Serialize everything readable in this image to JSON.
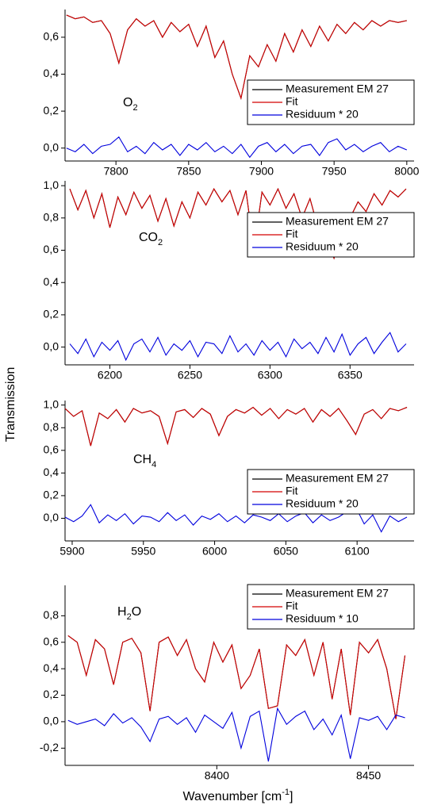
{
  "y_label": "Transmission",
  "x_label": [
    {
      "text": "Wavenumber [cm"
    },
    {
      "text": "-1",
      "sup": true
    },
    {
      "text": "]"
    }
  ],
  "chart_data": [
    {
      "type": "line",
      "label": [
        {
          "text": "O"
        },
        {
          "text": "2",
          "sub": true
        }
      ],
      "xlim": [
        7765,
        8005
      ],
      "xticks": [
        7800,
        7850,
        7900,
        7950,
        8000
      ],
      "ylim": [
        -0.07,
        0.75
      ],
      "yticks": [
        {
          "value": 0,
          "label": "0,0"
        },
        {
          "value": 0.2,
          "label": "0,2"
        },
        {
          "value": 0.4,
          "label": "0,4"
        },
        {
          "value": 0.6,
          "label": "0,6"
        }
      ],
      "x": [
        7766,
        7772,
        7778,
        7784,
        7790,
        7796,
        7802,
        7808,
        7814,
        7820,
        7826,
        7832,
        7838,
        7844,
        7850,
        7856,
        7862,
        7868,
        7874,
        7880,
        7886,
        7892,
        7898,
        7904,
        7910,
        7916,
        7922,
        7928,
        7934,
        7940,
        7946,
        7952,
        7958,
        7964,
        7970,
        7976,
        7982,
        7988,
        7994,
        8000
      ],
      "series": [
        {
          "name": "Measurement EM 27",
          "color": "#000000",
          "values": [
            0.72,
            0.7,
            0.71,
            0.68,
            0.69,
            0.62,
            0.46,
            0.64,
            0.7,
            0.66,
            0.69,
            0.6,
            0.68,
            0.63,
            0.67,
            0.55,
            0.66,
            0.49,
            0.58,
            0.4,
            0.27,
            0.5,
            0.44,
            0.56,
            0.47,
            0.62,
            0.52,
            0.64,
            0.55,
            0.66,
            0.58,
            0.67,
            0.62,
            0.68,
            0.64,
            0.69,
            0.66,
            0.69,
            0.68,
            0.69
          ]
        },
        {
          "name": "Fit",
          "color": "#d40000",
          "values": [
            0.72,
            0.7,
            0.71,
            0.68,
            0.69,
            0.62,
            0.46,
            0.64,
            0.7,
            0.66,
            0.69,
            0.6,
            0.68,
            0.63,
            0.67,
            0.55,
            0.66,
            0.49,
            0.58,
            0.4,
            0.27,
            0.5,
            0.44,
            0.56,
            0.47,
            0.62,
            0.52,
            0.64,
            0.55,
            0.66,
            0.58,
            0.67,
            0.62,
            0.68,
            0.64,
            0.69,
            0.66,
            0.69,
            0.68,
            0.69
          ]
        },
        {
          "name": "Residuum * 20",
          "color": "#0000dd",
          "values": [
            0.0,
            -0.02,
            0.02,
            -0.03,
            0.01,
            0.02,
            0.06,
            -0.02,
            0.01,
            -0.03,
            0.03,
            -0.01,
            0.02,
            -0.04,
            0.02,
            -0.01,
            0.03,
            -0.02,
            0.01,
            -0.03,
            0.02,
            -0.05,
            0.01,
            0.03,
            -0.02,
            0.02,
            -0.03,
            0.01,
            0.02,
            -0.04,
            0.03,
            0.05,
            -0.01,
            0.02,
            -0.02,
            0.01,
            0.03,
            -0.02,
            0.01,
            -0.01
          ]
        }
      ]
    },
    {
      "type": "line",
      "label": [
        {
          "text": "CO"
        },
        {
          "text": "2",
          "sub": true
        }
      ],
      "xlim": [
        6172,
        6390
      ],
      "xticks": [
        6200,
        6250,
        6300,
        6350
      ],
      "ylim": [
        -0.11,
        1.03
      ],
      "yticks": [
        {
          "value": 0,
          "label": "0,0"
        },
        {
          "value": 0.2,
          "label": "0,2"
        },
        {
          "value": 0.4,
          "label": "0,4"
        },
        {
          "value": 0.6,
          "label": "0,6"
        },
        {
          "value": 0.8,
          "label": "0,8"
        },
        {
          "value": 1,
          "label": "1,0"
        }
      ],
      "x": [
        6175,
        6180,
        6185,
        6190,
        6195,
        6200,
        6205,
        6210,
        6215,
        6220,
        6225,
        6230,
        6235,
        6240,
        6245,
        6250,
        6255,
        6260,
        6265,
        6270,
        6275,
        6280,
        6285,
        6290,
        6295,
        6300,
        6305,
        6310,
        6315,
        6320,
        6325,
        6330,
        6335,
        6340,
        6345,
        6350,
        6355,
        6360,
        6365,
        6370,
        6375,
        6380,
        6385
      ],
      "series": [
        {
          "name": "Measurement EM 27",
          "color": "#000000",
          "values": [
            0.98,
            0.85,
            0.97,
            0.8,
            0.95,
            0.74,
            0.93,
            0.82,
            0.96,
            0.86,
            0.94,
            0.78,
            0.92,
            0.75,
            0.9,
            0.8,
            0.96,
            0.88,
            0.98,
            0.9,
            0.97,
            0.82,
            0.97,
            0.6,
            0.96,
            0.88,
            0.98,
            0.86,
            0.95,
            0.8,
            0.92,
            0.74,
            0.68,
            0.55,
            0.72,
            0.8,
            0.9,
            0.84,
            0.95,
            0.88,
            0.97,
            0.93,
            0.98
          ]
        },
        {
          "name": "Fit",
          "color": "#d40000",
          "values": [
            0.98,
            0.85,
            0.97,
            0.8,
            0.95,
            0.74,
            0.93,
            0.82,
            0.96,
            0.86,
            0.94,
            0.78,
            0.92,
            0.75,
            0.9,
            0.8,
            0.96,
            0.88,
            0.98,
            0.9,
            0.97,
            0.82,
            0.97,
            0.6,
            0.96,
            0.88,
            0.98,
            0.86,
            0.95,
            0.8,
            0.92,
            0.74,
            0.68,
            0.55,
            0.72,
            0.8,
            0.9,
            0.84,
            0.95,
            0.88,
            0.97,
            0.93,
            0.98
          ]
        },
        {
          "name": "Residuum * 20",
          "color": "#0000dd",
          "values": [
            0.02,
            -0.04,
            0.05,
            -0.06,
            0.03,
            -0.02,
            0.04,
            -0.08,
            0.02,
            0.05,
            -0.03,
            0.06,
            -0.05,
            0.02,
            -0.02,
            0.04,
            -0.06,
            0.03,
            0.02,
            -0.04,
            0.07,
            -0.03,
            0.02,
            -0.05,
            0.04,
            -0.02,
            0.03,
            -0.06,
            0.05,
            -0.01,
            0.03,
            -0.04,
            0.06,
            -0.03,
            0.08,
            -0.05,
            0.02,
            0.06,
            -0.04,
            0.03,
            0.09,
            -0.03,
            0.02
          ]
        }
      ]
    },
    {
      "type": "line",
      "label": [
        {
          "text": "CH"
        },
        {
          "text": "4",
          "sub": true
        }
      ],
      "xlim": [
        5895,
        6140
      ],
      "xticks": [
        5900,
        5950,
        6000,
        6050,
        6100
      ],
      "ylim": [
        -0.2,
        1.04
      ],
      "yticks": [
        {
          "value": 0,
          "label": "0,0"
        },
        {
          "value": 0.2,
          "label": "0,2"
        },
        {
          "value": 0.4,
          "label": "0,4"
        },
        {
          "value": 0.6,
          "label": "0,6"
        },
        {
          "value": 0.8,
          "label": "0,8"
        },
        {
          "value": 1,
          "label": "1,0"
        }
      ],
      "x": [
        5895,
        5901,
        5907,
        5913,
        5919,
        5925,
        5931,
        5937,
        5943,
        5949,
        5955,
        5961,
        5967,
        5973,
        5979,
        5985,
        5991,
        5997,
        6003,
        6009,
        6015,
        6021,
        6027,
        6033,
        6039,
        6045,
        6051,
        6057,
        6063,
        6069,
        6075,
        6081,
        6087,
        6093,
        6099,
        6105,
        6111,
        6117,
        6123,
        6129,
        6135
      ],
      "series": [
        {
          "name": "Measurement EM 27",
          "color": "#000000",
          "values": [
            0.97,
            0.9,
            0.95,
            0.64,
            0.93,
            0.88,
            0.96,
            0.85,
            0.97,
            0.93,
            0.95,
            0.9,
            0.66,
            0.94,
            0.96,
            0.89,
            0.97,
            0.92,
            0.73,
            0.9,
            0.96,
            0.93,
            0.98,
            0.91,
            0.97,
            0.88,
            0.96,
            0.92,
            0.97,
            0.85,
            0.96,
            0.9,
            0.97,
            0.86,
            0.74,
            0.92,
            0.96,
            0.88,
            0.97,
            0.95,
            0.98
          ]
        },
        {
          "name": "Fit",
          "color": "#d40000",
          "values": [
            0.97,
            0.9,
            0.95,
            0.64,
            0.93,
            0.88,
            0.96,
            0.85,
            0.97,
            0.93,
            0.95,
            0.9,
            0.66,
            0.94,
            0.96,
            0.89,
            0.97,
            0.92,
            0.73,
            0.9,
            0.96,
            0.93,
            0.98,
            0.91,
            0.97,
            0.88,
            0.96,
            0.92,
            0.97,
            0.85,
            0.96,
            0.9,
            0.97,
            0.86,
            0.74,
            0.92,
            0.96,
            0.88,
            0.97,
            0.95,
            0.98
          ]
        },
        {
          "name": "Residuum * 20",
          "color": "#0000dd",
          "values": [
            0.01,
            -0.03,
            0.02,
            0.12,
            -0.04,
            0.03,
            -0.02,
            0.04,
            -0.05,
            0.02,
            0.01,
            -0.03,
            0.05,
            -0.02,
            0.03,
            -0.06,
            0.02,
            -0.01,
            0.04,
            -0.03,
            0.02,
            -0.04,
            0.03,
            0.01,
            -0.02,
            0.04,
            -0.03,
            0.02,
            0.05,
            -0.04,
            0.03,
            -0.02,
            0.01,
            0.06,
            0.1,
            -0.05,
            0.03,
            -0.12,
            0.02,
            -0.03,
            0.01
          ]
        }
      ]
    },
    {
      "type": "line",
      "label": [
        {
          "text": "H"
        },
        {
          "text": "2",
          "sub": true
        },
        {
          "text": "O"
        }
      ],
      "xlim": [
        8350,
        8465
      ],
      "xticks": [
        8400,
        8450
      ],
      "ylim": [
        -0.33,
        1.03
      ],
      "yticks": [
        {
          "value": -0.2,
          "label": "-0,2"
        },
        {
          "value": 0,
          "label": "0,0"
        },
        {
          "value": 0.2,
          "label": "0,2"
        },
        {
          "value": 0.4,
          "label": "0,4"
        },
        {
          "value": 0.6,
          "label": "0,6"
        },
        {
          "value": 0.8,
          "label": "0,8"
        }
      ],
      "x": [
        8351,
        8354,
        8357,
        8360,
        8363,
        8366,
        8369,
        8372,
        8375,
        8378,
        8381,
        8384,
        8387,
        8390,
        8393,
        8396,
        8399,
        8402,
        8405,
        8408,
        8411,
        8414,
        8417,
        8420,
        8423,
        8426,
        8429,
        8432,
        8435,
        8438,
        8441,
        8444,
        8447,
        8450,
        8453,
        8456,
        8459,
        8462
      ],
      "series": [
        {
          "name": "Measurement EM 27",
          "color": "#000000",
          "values": [
            0.65,
            0.6,
            0.35,
            0.62,
            0.55,
            0.28,
            0.6,
            0.63,
            0.52,
            0.08,
            0.6,
            0.64,
            0.5,
            0.62,
            0.4,
            0.3,
            0.6,
            0.45,
            0.58,
            0.25,
            0.35,
            0.55,
            0.1,
            0.12,
            0.58,
            0.5,
            0.62,
            0.35,
            0.6,
            0.17,
            0.55,
            0.05,
            0.6,
            0.52,
            0.62,
            0.4,
            0.02,
            0.5
          ]
        },
        {
          "name": "Fit",
          "color": "#d40000",
          "values": [
            0.65,
            0.6,
            0.35,
            0.62,
            0.55,
            0.28,
            0.6,
            0.63,
            0.52,
            0.08,
            0.6,
            0.64,
            0.5,
            0.62,
            0.4,
            0.3,
            0.6,
            0.45,
            0.58,
            0.25,
            0.35,
            0.55,
            0.1,
            0.12,
            0.58,
            0.5,
            0.62,
            0.35,
            0.6,
            0.17,
            0.55,
            0.05,
            0.6,
            0.52,
            0.62,
            0.4,
            0.02,
            0.5
          ]
        },
        {
          "name": "Residuum * 10",
          "color": "#0000dd",
          "values": [
            0.01,
            -0.02,
            0.0,
            0.02,
            -0.03,
            0.06,
            -0.01,
            0.03,
            -0.04,
            -0.15,
            0.02,
            0.04,
            -0.02,
            0.03,
            -0.08,
            0.05,
            0.0,
            -0.05,
            0.07,
            -0.2,
            0.04,
            0.08,
            -0.3,
            0.1,
            -0.02,
            0.04,
            0.08,
            -0.06,
            0.02,
            -0.1,
            0.05,
            -0.28,
            0.03,
            0.01,
            0.04,
            -0.06,
            0.05,
            0.03
          ]
        }
      ]
    }
  ]
}
